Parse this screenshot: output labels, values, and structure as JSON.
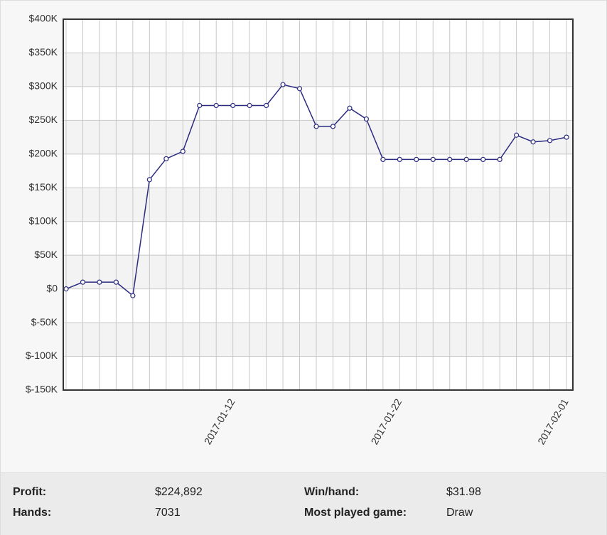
{
  "chart_data": {
    "type": "line",
    "x": [
      "2017-01-02",
      "2017-01-03",
      "2017-01-04",
      "2017-01-05",
      "2017-01-06",
      "2017-01-07",
      "2017-01-08",
      "2017-01-09",
      "2017-01-10",
      "2017-01-11",
      "2017-01-12",
      "2017-01-13",
      "2017-01-14",
      "2017-01-15",
      "2017-01-16",
      "2017-01-17",
      "2017-01-18",
      "2017-01-19",
      "2017-01-20",
      "2017-01-21",
      "2017-01-22",
      "2017-01-23",
      "2017-01-24",
      "2017-01-25",
      "2017-01-26",
      "2017-01-27",
      "2017-01-28",
      "2017-01-29",
      "2017-01-30",
      "2017-01-31",
      "2017-02-01"
    ],
    "values": [
      0,
      10000,
      10000,
      10000,
      -10000,
      162000,
      193000,
      204000,
      272000,
      272000,
      272000,
      272000,
      272000,
      303000,
      297000,
      241000,
      241000,
      268000,
      252000,
      192000,
      192000,
      192000,
      192000,
      192000,
      192000,
      192000,
      192000,
      228000,
      218000,
      220000,
      225000
    ],
    "color": "#2b2b80",
    "xlim": [
      "2017-01-02",
      "2017-02-01"
    ],
    "xticks": [
      "2017-01-12",
      "2017-01-22",
      "2017-02-01"
    ],
    "ylim": [
      -150000,
      400000
    ],
    "yticks": [
      {
        "value": -150000,
        "label": "$-150K"
      },
      {
        "value": -100000,
        "label": "$-100K"
      },
      {
        "value": -50000,
        "label": "$-50K"
      },
      {
        "value": 0,
        "label": "$0"
      },
      {
        "value": 50000,
        "label": "$50K"
      },
      {
        "value": 100000,
        "label": "$100K"
      },
      {
        "value": 150000,
        "label": "$150K"
      },
      {
        "value": 200000,
        "label": "$200K"
      },
      {
        "value": 250000,
        "label": "$250K"
      },
      {
        "value": 300000,
        "label": "$300K"
      },
      {
        "value": 350000,
        "label": "$350K"
      },
      {
        "value": 400000,
        "label": "$400K"
      }
    ],
    "grid": true
  },
  "stats": [
    [
      {
        "label": "Profit:",
        "value": "$224,892"
      },
      {
        "label": "Win/hand:",
        "value": "$31.98"
      }
    ],
    [
      {
        "label": "Hands:",
        "value": "7031"
      },
      {
        "label": "Most played game:",
        "value": "Draw"
      }
    ]
  ]
}
